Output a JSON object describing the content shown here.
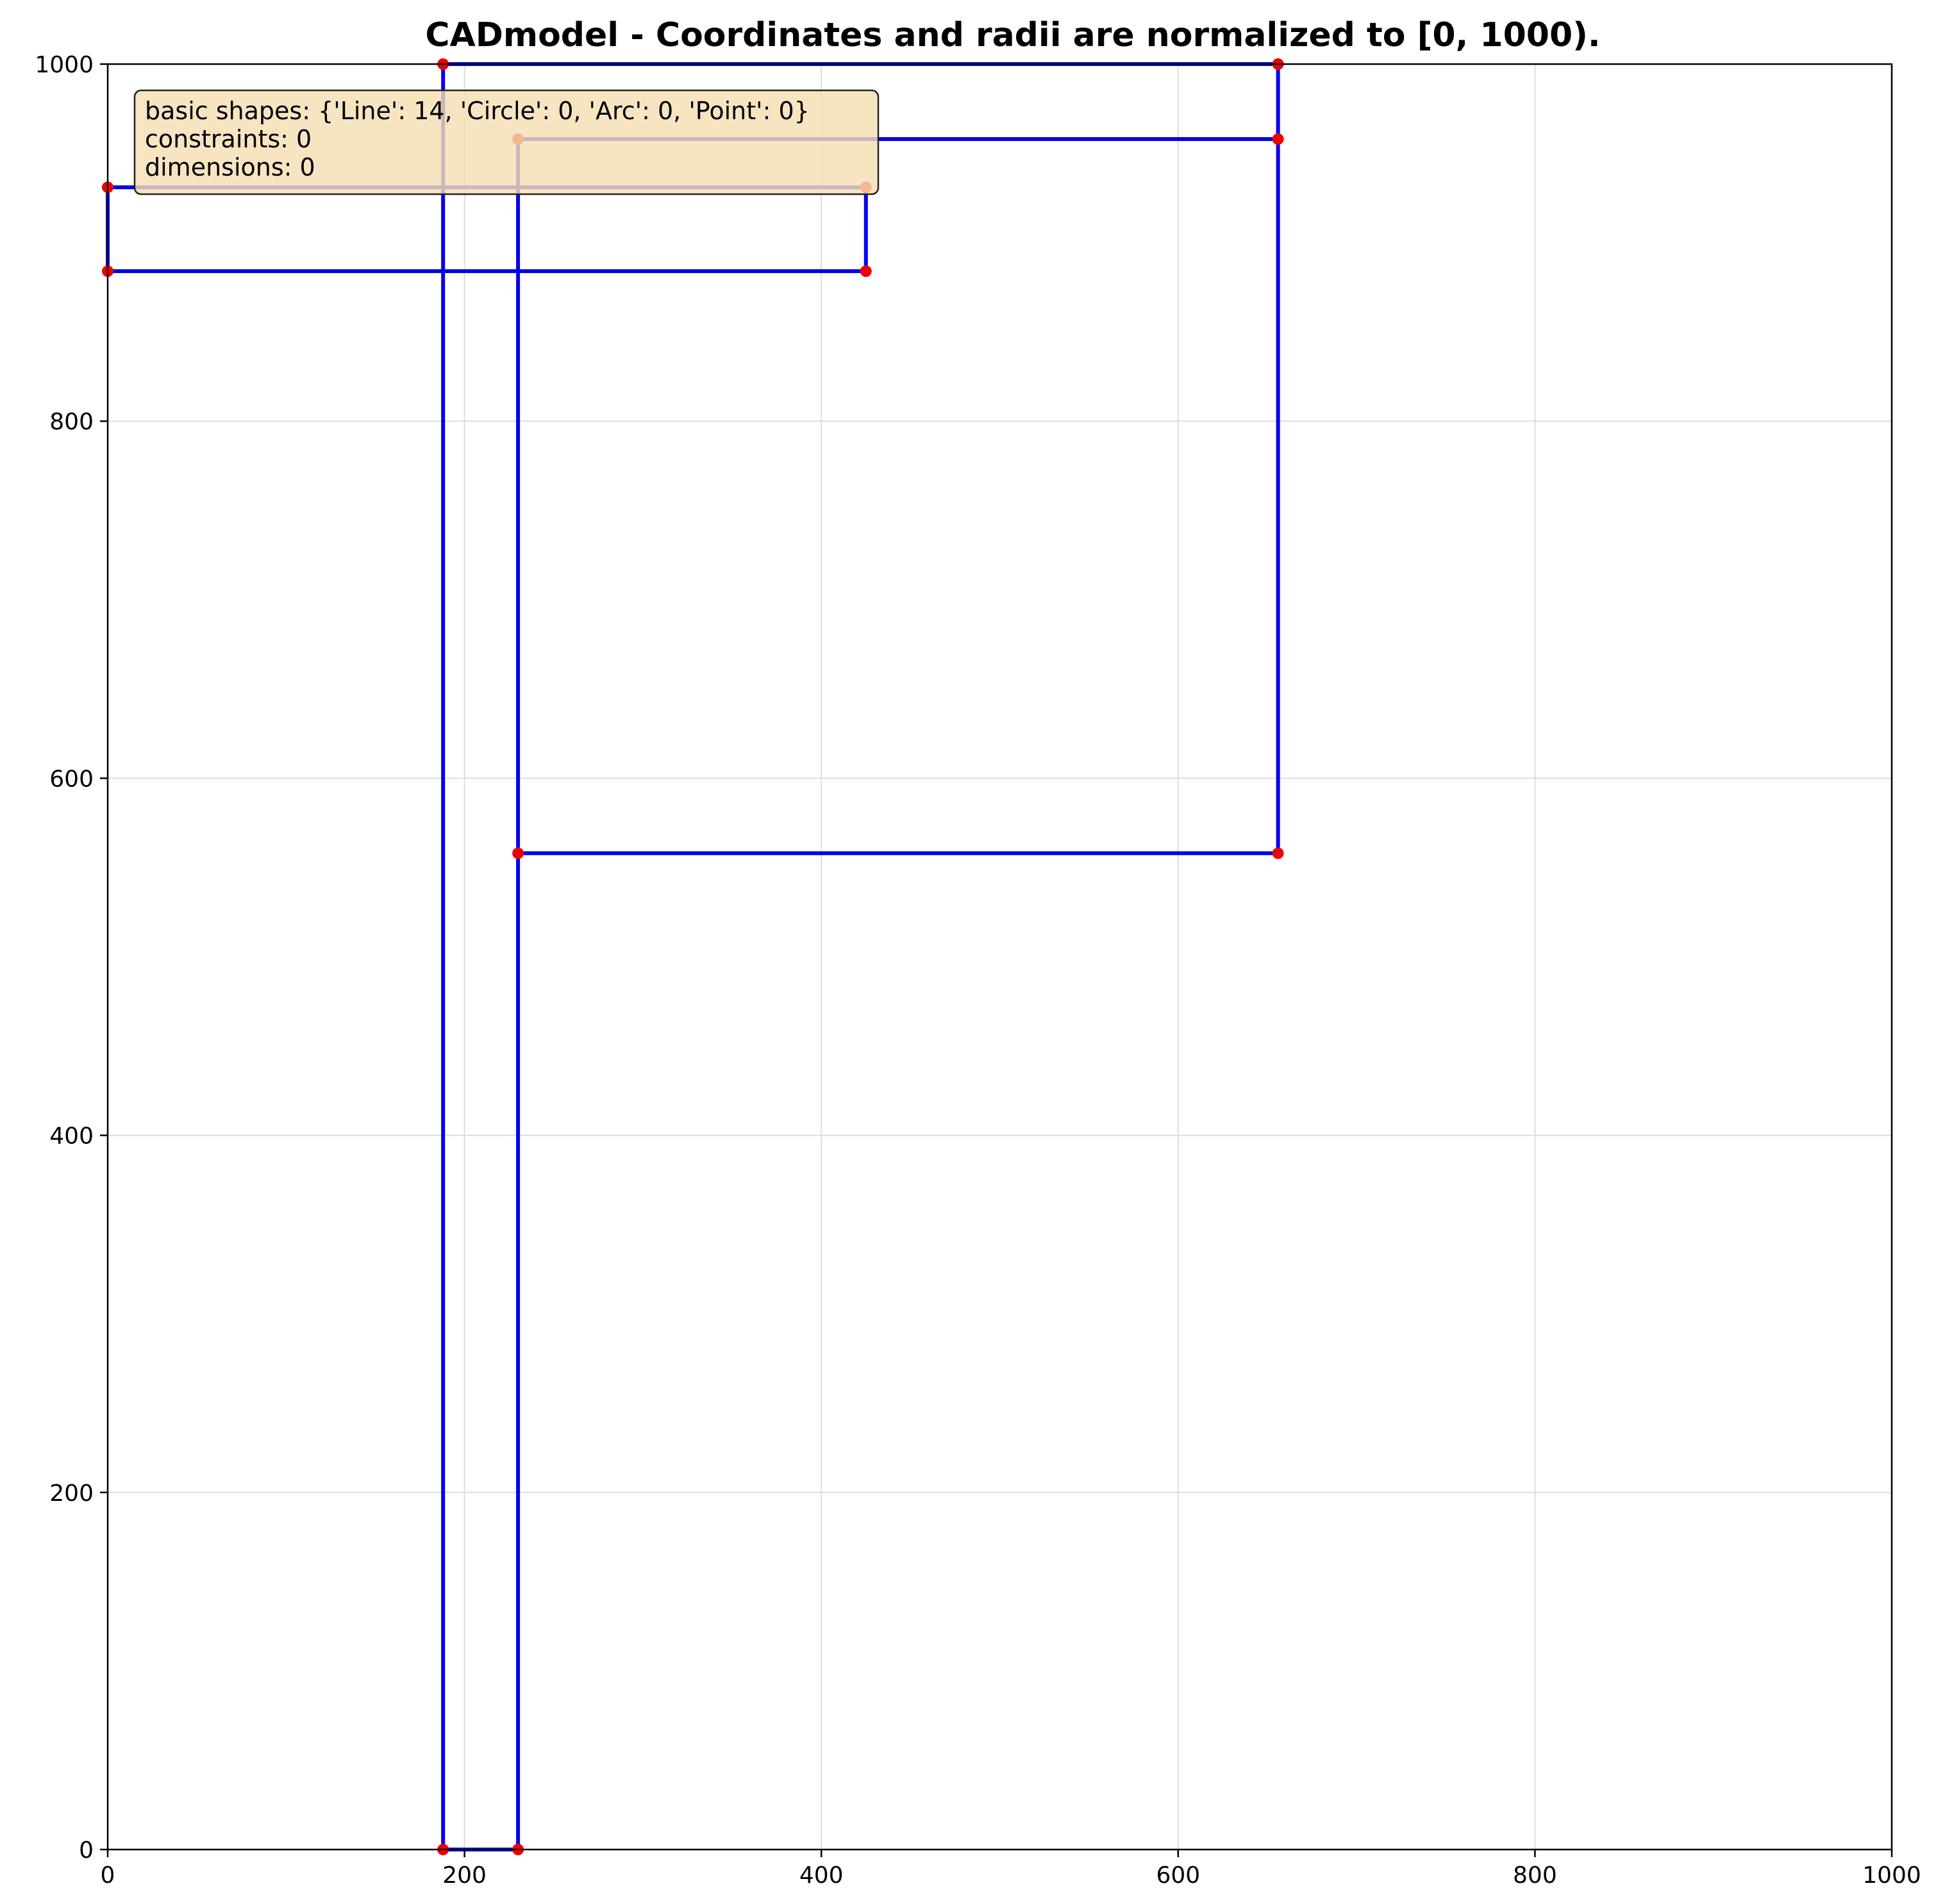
{
  "chart_data": {
    "type": "line",
    "title": "CADmodel - Coordinates and radii are normalized to [0, 1000).",
    "xlim": [
      0,
      1000
    ],
    "ylim": [
      0,
      1000
    ],
    "x_ticks": [
      "0",
      "200",
      "400",
      "600",
      "800",
      "1000"
    ],
    "y_ticks": [
      "0",
      "200",
      "400",
      "600",
      "800",
      "1000"
    ],
    "grid": true,
    "line_color": "#0000ee",
    "point_color": "#ee0000",
    "segments": [
      [
        0,
        931,
        425,
        931
      ],
      [
        425,
        931,
        425,
        884
      ],
      [
        425,
        884,
        0,
        884
      ],
      [
        0,
        884,
        0,
        931
      ],
      [
        188,
        0,
        188,
        1000
      ],
      [
        188,
        1000,
        656,
        1000
      ],
      [
        656,
        1000,
        656,
        958
      ],
      [
        656,
        958,
        230,
        958
      ],
      [
        230,
        958,
        230,
        558
      ],
      [
        230,
        558,
        656,
        558
      ],
      [
        656,
        558,
        656,
        958
      ],
      [
        230,
        558,
        230,
        0
      ],
      [
        230,
        0,
        188,
        0
      ],
      [
        230,
        958,
        230,
        931
      ]
    ],
    "points": [
      [
        0,
        931
      ],
      [
        425,
        931
      ],
      [
        425,
        884
      ],
      [
        0,
        884
      ],
      [
        188,
        1000
      ],
      [
        188,
        0
      ],
      [
        656,
        1000
      ],
      [
        656,
        958
      ],
      [
        230,
        958
      ],
      [
        230,
        558
      ],
      [
        656,
        558
      ],
      [
        230,
        0
      ]
    ]
  },
  "info_box": {
    "line1": "basic shapes: {'Line': 14, 'Circle': 0, 'Arc': 0, 'Point': 0}",
    "line2": "constraints: 0",
    "line3": "dimensions: 0"
  }
}
